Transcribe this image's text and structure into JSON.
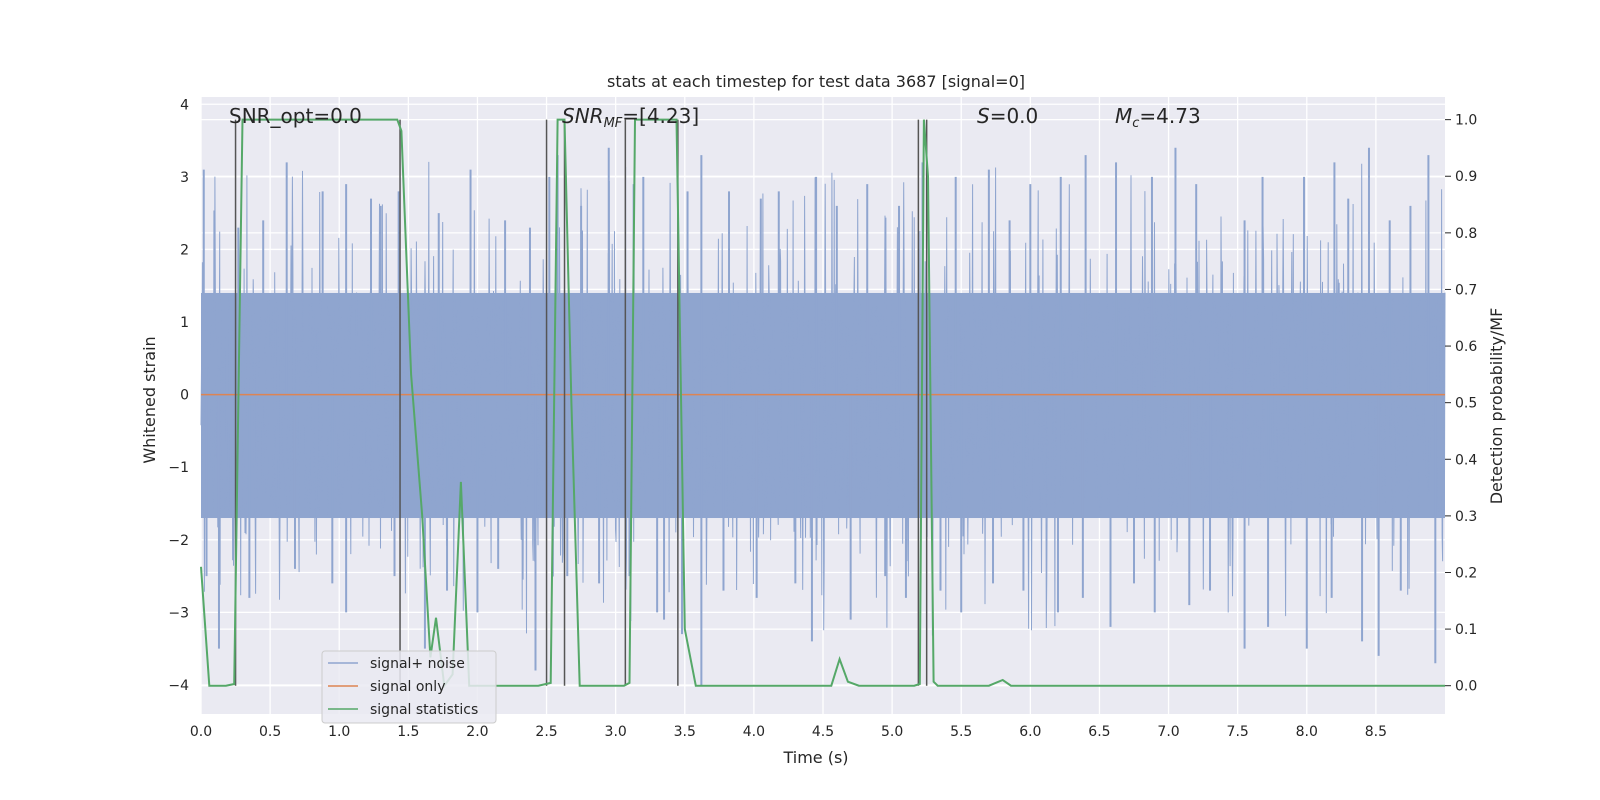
{
  "chart_data": {
    "type": "line",
    "title": "stats at each timestep for test data 3687 [signal=0]",
    "xlabel": "Time (s)",
    "ylabel": "Whitened strain",
    "y2label": "Detection probability/MF",
    "xlim": [
      0.0,
      9.0
    ],
    "ylim": [
      -4.4,
      4.1
    ],
    "y2lim": [
      -0.05,
      1.04
    ],
    "grid": true,
    "legend_position": "bottom-left",
    "xticks": [
      "0.0",
      "0.5",
      "1.0",
      "1.5",
      "2.0",
      "2.5",
      "3.0",
      "3.5",
      "4.0",
      "4.5",
      "5.0",
      "5.5",
      "6.0",
      "6.5",
      "7.0",
      "7.5",
      "8.0",
      "8.5"
    ],
    "xtick_values": [
      0.0,
      0.5,
      1.0,
      1.5,
      2.0,
      2.5,
      3.0,
      3.5,
      4.0,
      4.5,
      5.0,
      5.5,
      6.0,
      6.5,
      7.0,
      7.5,
      8.0,
      8.5
    ],
    "yticks": [
      "4",
      "3",
      "2",
      "1",
      "0",
      "−1",
      "−2",
      "−3",
      "−4"
    ],
    "ytick_values": [
      4,
      3,
      2,
      1,
      0,
      -1,
      -2,
      -3,
      -4
    ],
    "y2ticks": [
      "1.0",
      "0.9",
      "0.8",
      "0.7",
      "0.6",
      "0.5",
      "0.4",
      "0.3",
      "0.2",
      "0.1",
      "0.0"
    ],
    "y2tick_values": [
      1.0,
      0.9,
      0.8,
      0.7,
      0.6,
      0.5,
      0.4,
      0.3,
      0.2,
      0.1,
      0.0
    ],
    "annotations": {
      "snr_opt": "SNR_opt=0.0",
      "snr_mf_main": "SNR",
      "snr_mf_sub": "MF",
      "snr_mf_rest": "=[4.23]",
      "s_main": "S",
      "s_rest": "=0.0",
      "mc_main": "M",
      "mc_sub": "c",
      "mc_rest": "=4.73"
    },
    "series": [
      {
        "name": "signal+ noise",
        "color": "#8fa5cf",
        "band": {
          "typical_low": -1.7,
          "typical_high": 1.4,
          "peak_low": -3.5,
          "peak_high": 3.3
        },
        "spikes_up": [
          [
            0.02,
            3.1
          ],
          [
            0.27,
            2.3
          ],
          [
            0.45,
            2.4
          ],
          [
            0.62,
            3.2
          ],
          [
            0.88,
            2.8
          ],
          [
            1.05,
            2.9
          ],
          [
            1.23,
            2.7
          ],
          [
            1.3,
            2.6
          ],
          [
            1.43,
            2.8
          ],
          [
            1.72,
            2.5
          ],
          [
            1.95,
            3.1
          ],
          [
            2.2,
            2.4
          ],
          [
            2.38,
            2.3
          ],
          [
            2.52,
            3.0
          ],
          [
            2.58,
            3.3
          ],
          [
            2.75,
            2.6
          ],
          [
            2.95,
            3.4
          ],
          [
            3.13,
            2.9
          ],
          [
            3.2,
            3.0
          ],
          [
            3.52,
            2.8
          ],
          [
            3.62,
            3.3
          ],
          [
            3.82,
            2.8
          ],
          [
            4.05,
            2.7
          ],
          [
            4.18,
            2.8
          ],
          [
            4.45,
            3.0
          ],
          [
            4.6,
            2.6
          ],
          [
            4.82,
            2.9
          ],
          [
            5.05,
            2.6
          ],
          [
            5.22,
            3.2
          ],
          [
            5.46,
            3.0
          ],
          [
            5.7,
            3.1
          ],
          [
            5.85,
            2.4
          ],
          [
            6.0,
            2.9
          ],
          [
            6.22,
            3.0
          ],
          [
            6.4,
            3.3
          ],
          [
            6.62,
            3.2
          ],
          [
            6.88,
            3.0
          ],
          [
            7.05,
            3.4
          ],
          [
            7.2,
            2.9
          ],
          [
            7.55,
            2.4
          ],
          [
            7.68,
            3.0
          ],
          [
            7.98,
            3.0
          ],
          [
            8.2,
            3.2
          ],
          [
            8.3,
            2.7
          ],
          [
            8.45,
            3.4
          ],
          [
            8.6,
            2.4
          ],
          [
            8.75,
            2.6
          ],
          [
            8.88,
            3.3
          ]
        ],
        "spikes_down": [
          [
            0.04,
            -2.5
          ],
          [
            0.13,
            -3.5
          ],
          [
            0.35,
            -2.8
          ],
          [
            0.68,
            -2.4
          ],
          [
            0.95,
            -2.6
          ],
          [
            1.05,
            -3.0
          ],
          [
            1.4,
            -2.5
          ],
          [
            1.62,
            -3.5
          ],
          [
            1.78,
            -2.7
          ],
          [
            2.0,
            -3.0
          ],
          [
            2.15,
            -2.4
          ],
          [
            2.42,
            -3.8
          ],
          [
            2.65,
            -2.5
          ],
          [
            2.88,
            -2.6
          ],
          [
            3.1,
            -2.5
          ],
          [
            3.3,
            -3.0
          ],
          [
            3.35,
            -3.1
          ],
          [
            3.48,
            -3.3
          ],
          [
            3.62,
            -4.0
          ],
          [
            3.78,
            -2.7
          ],
          [
            4.02,
            -2.8
          ],
          [
            4.3,
            -2.6
          ],
          [
            4.42,
            -3.4
          ],
          [
            4.7,
            -3.1
          ],
          [
            4.95,
            -2.5
          ],
          [
            5.1,
            -2.8
          ],
          [
            5.35,
            -2.7
          ],
          [
            5.5,
            -3.0
          ],
          [
            5.73,
            -2.6
          ],
          [
            5.95,
            -2.7
          ],
          [
            6.2,
            -3.0
          ],
          [
            6.38,
            -2.8
          ],
          [
            6.58,
            -3.2
          ],
          [
            6.75,
            -2.6
          ],
          [
            6.9,
            -3.0
          ],
          [
            7.15,
            -2.9
          ],
          [
            7.3,
            -2.7
          ],
          [
            7.55,
            -3.5
          ],
          [
            7.72,
            -3.2
          ],
          [
            8.0,
            -3.5
          ],
          [
            8.18,
            -2.8
          ],
          [
            8.4,
            -3.4
          ],
          [
            8.52,
            -3.6
          ],
          [
            8.68,
            -2.7
          ],
          [
            8.93,
            -3.7
          ]
        ]
      },
      {
        "name": "signal only",
        "color": "#dd8452",
        "x": [
          0.0,
          9.0
        ],
        "y": [
          0.0,
          0.0
        ]
      },
      {
        "name": "signal statistics",
        "color": "#55a868",
        "axis": "right",
        "x": [
          0.0,
          0.06,
          0.18,
          0.24,
          0.3,
          0.6,
          0.9,
          1.2,
          1.42,
          1.45,
          1.52,
          1.6,
          1.66,
          1.7,
          1.76,
          1.82,
          1.88,
          1.94,
          2.0,
          2.15,
          2.3,
          2.44,
          2.53,
          2.58,
          2.63,
          2.68,
          2.74,
          2.8,
          2.88,
          2.96,
          3.06,
          3.1,
          3.14,
          3.2,
          3.3,
          3.4,
          3.44,
          3.5,
          3.58,
          3.7,
          4.0,
          4.3,
          4.56,
          4.62,
          4.68,
          4.76,
          4.9,
          5.0,
          5.16,
          5.2,
          5.23,
          5.26,
          5.3,
          5.33,
          5.38,
          5.6,
          5.7,
          5.8,
          5.86,
          5.92,
          6.2,
          6.6,
          7.0,
          7.6,
          8.0,
          8.5,
          9.0
        ],
        "y": [
          0.21,
          0.0,
          0.0,
          0.003,
          1.0,
          1.0,
          1.0,
          1.0,
          1.0,
          0.98,
          0.55,
          0.3,
          0.05,
          0.12,
          0.0,
          0.02,
          0.36,
          0.0,
          0.0,
          0.0,
          0.0,
          0.0,
          0.005,
          1.0,
          1.0,
          0.5,
          0.0,
          0.0,
          0.0,
          0.0,
          0.0,
          0.005,
          1.0,
          1.0,
          1.0,
          1.0,
          1.0,
          0.1,
          0.0,
          0.0,
          0.0,
          0.0,
          0.0,
          0.047,
          0.007,
          0.0,
          0.0,
          0.0,
          0.0,
          0.003,
          1.0,
          0.9,
          0.007,
          0.0,
          0.0,
          0.0,
          0.0,
          0.01,
          0.0,
          0.0,
          0.0,
          0.0,
          0.0,
          0.0,
          0.0,
          0.0,
          0.0
        ]
      }
    ],
    "vlines": [
      0.25,
      1.44,
      2.5,
      2.63,
      3.07,
      3.45,
      5.19,
      5.25
    ],
    "vline_color": "#555555"
  },
  "legend": {
    "items": [
      {
        "label": "signal+ noise",
        "color": "#8fa5cf"
      },
      {
        "label": "signal only",
        "color": "#dd8452"
      },
      {
        "label": "signal statistics",
        "color": "#55a868"
      }
    ]
  }
}
